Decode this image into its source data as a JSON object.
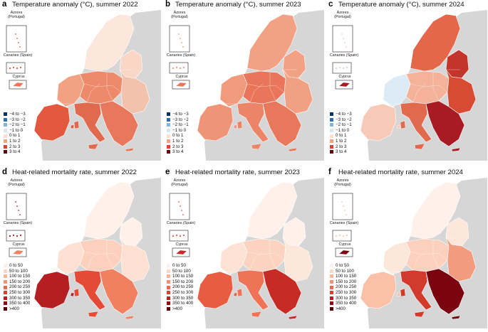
{
  "panels": [
    {
      "letter": "a",
      "title": "Temperature anomaly (°C), summer 2022",
      "kind": "temp"
    },
    {
      "letter": "b",
      "title": "Temperature anomaly (°C), summer 2023",
      "kind": "temp"
    },
    {
      "letter": "c",
      "title": "Temperature anomaly (°C), summer 2024",
      "kind": "temp"
    },
    {
      "letter": "d",
      "title": "Heat-related mortality rate, summer 2022",
      "kind": "mort"
    },
    {
      "letter": "e",
      "title": "Heat-related mortality rate, summer 2023",
      "kind": "mort"
    },
    {
      "letter": "f",
      "title": "Heat-related mortality rate, summer 2024",
      "kind": "mort"
    }
  ],
  "insets": {
    "azores": "Azores\n(Portugal)",
    "canaries": "Canaries (Spain)",
    "cyprus": "Cyprus"
  },
  "legend_temperature": [
    {
      "label": "−4 to −3",
      "color": "#08306b"
    },
    {
      "label": "−3 to −2",
      "color": "#2f6fb0"
    },
    {
      "label": "−2 to −1",
      "color": "#83b5dc"
    },
    {
      "label": "−1 to 0",
      "color": "#d6e6f3"
    },
    {
      "label": "0 to 1",
      "color": "#fde0d2"
    },
    {
      "label": "1 to 2",
      "color": "#f4a081"
    },
    {
      "label": "2 to 3",
      "color": "#d9432f"
    },
    {
      "label": "3 to 4",
      "color": "#67000d"
    }
  ],
  "legend_mortality": [
    {
      "label": "0 to 50",
      "color": "#fff1ea"
    },
    {
      "label": "50 to 100",
      "color": "#fdd5c2"
    },
    {
      "label": "100 to 150",
      "color": "#fbb59a"
    },
    {
      "label": "150 to 200",
      "color": "#f79274"
    },
    {
      "label": "200 to 250",
      "color": "#ef6a4c"
    },
    {
      "label": "250 to 300",
      "color": "#de402f"
    },
    {
      "label": "300 to 350",
      "color": "#bb1f21"
    },
    {
      "label": "350 to 400",
      "color": "#8e0b14"
    },
    {
      "label": ">400",
      "color": "#5a0008"
    }
  ],
  "map_colors": {
    "background_land": "#d6d6d6",
    "sea": "#ffffff"
  },
  "region_fill": {
    "a": {
      "north": "#fde6dc",
      "west": "#f2a182",
      "center": "#ee8a6c",
      "south": "#e06a4e",
      "iberia": "#e2593f",
      "east": "#f3c2ad",
      "balkans": "#e8785c",
      "baltic": "#f9d6c6"
    },
    "b": {
      "north": "#f3a184",
      "west": "#f29a7c",
      "center": "#e9765a",
      "south": "#ec8467",
      "iberia": "#ef9577",
      "east": "#f1a083",
      "balkans": "#e8785c",
      "baltic": "#f3a184"
    },
    "c": {
      "north": "#e4664b",
      "west": "#dcebf5",
      "center": "#f4b29a",
      "south": "#e06a4e",
      "iberia": "#f7c9b6",
      "east": "#d74a33",
      "balkans": "#a91b22",
      "baltic": "#c3342b"
    },
    "d": {
      "north": "#fff1ea",
      "west": "#fde0d2",
      "center": "#fcd0bc",
      "south": "#e34b36",
      "iberia": "#b51f22",
      "east": "#fde0d2",
      "balkans": "#f08060",
      "baltic": "#fff1ea"
    },
    "e": {
      "north": "#fff1ea",
      "west": "#fde3d6",
      "center": "#fcd3c0",
      "south": "#ef7457",
      "iberia": "#e85d42",
      "east": "#fde6da",
      "balkans": "#c62b26",
      "baltic": "#fff1ea"
    },
    "f": {
      "north": "#fff1ea",
      "west": "#fde6da",
      "center": "#fbd0bd",
      "south": "#d23a2c",
      "iberia": "#fbc1a8",
      "east": "#f29b7d",
      "balkans": "#7a0510",
      "baltic": "#fde6da"
    }
  }
}
